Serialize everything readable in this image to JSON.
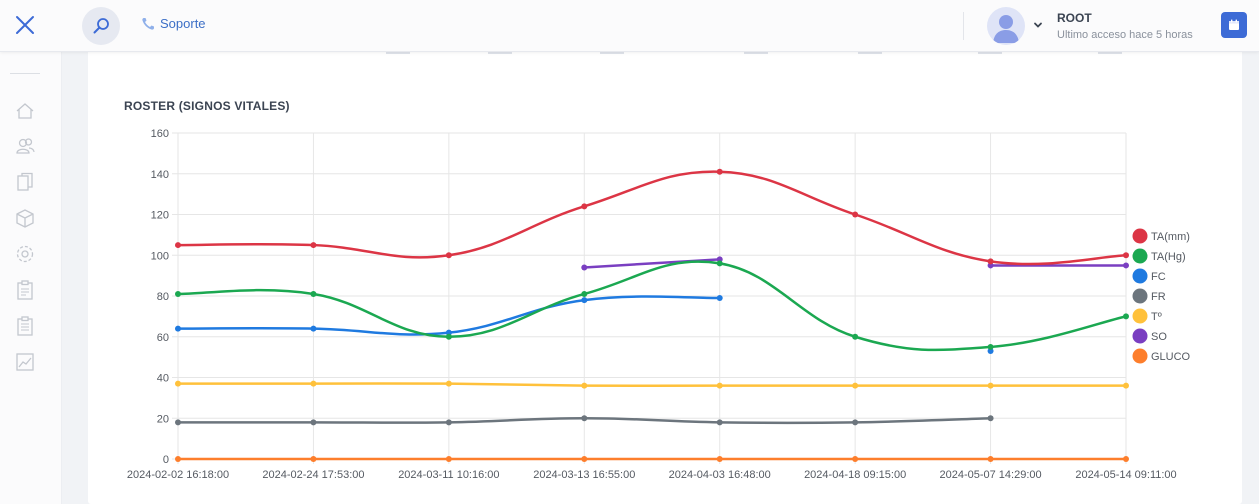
{
  "header": {
    "support_label": "Soporte",
    "user_name": "ROOT",
    "last_access": "Ultimo acceso hace 5 horas"
  },
  "icons": {
    "close": "close-icon",
    "search": "search-icon",
    "support": "phone-icon",
    "avatar": "user-avatar",
    "chevron": "chevron-down-icon",
    "calendar": "calendar-icon",
    "sidebar": [
      "home-icon",
      "users-icon",
      "documents-icon",
      "box-icon",
      "gear-icon",
      "clipboard-icon",
      "clipboard-list-icon",
      "chart-line-icon"
    ]
  },
  "colors": {
    "accent": "#3d6bd6",
    "support": "#3c6fc6"
  },
  "chart_data": {
    "type": "line",
    "title": "ROSTER (SIGNOS VITALES)",
    "xlabel": "",
    "ylabel": "",
    "ylim": [
      0,
      160
    ],
    "yticks": [
      0,
      20,
      40,
      60,
      80,
      100,
      120,
      140,
      160
    ],
    "grid": true,
    "legend_position": "right",
    "categories": [
      "2024-02-02 16:18:00",
      "2024-02-24 17:53:00",
      "2024-03-11 10:16:00",
      "2024-03-13 16:55:00",
      "2024-04-03 16:48:00",
      "2024-04-18 09:15:00",
      "2024-05-07 14:29:00",
      "2024-05-14 09:11:00"
    ],
    "series": [
      {
        "name": "TA(mm)",
        "color": "#dc3545",
        "values": [
          105,
          105,
          100,
          124,
          141,
          120,
          97,
          100
        ]
      },
      {
        "name": "TA(Hg)",
        "color": "#1ba851",
        "values": [
          81,
          81,
          60,
          81,
          96,
          60,
          55,
          70
        ]
      },
      {
        "name": "FC",
        "color": "#1f7ae0",
        "values": [
          64,
          64,
          62,
          78,
          79,
          null,
          53,
          null
        ]
      },
      {
        "name": "FR",
        "color": "#6c757d",
        "values": [
          18,
          18,
          18,
          20,
          18,
          18,
          20,
          null
        ]
      },
      {
        "name": "Tº",
        "color": "#ffc13b",
        "values": [
          37,
          37,
          37,
          36,
          36,
          36,
          36,
          36
        ]
      },
      {
        "name": "SO",
        "color": "#7a3fc1",
        "values": [
          null,
          null,
          null,
          94,
          98,
          null,
          95,
          95
        ]
      },
      {
        "name": "GLUCO",
        "color": "#fd7e2c",
        "values": [
          0,
          0,
          0,
          0,
          0,
          0,
          0,
          0
        ]
      }
    ]
  }
}
